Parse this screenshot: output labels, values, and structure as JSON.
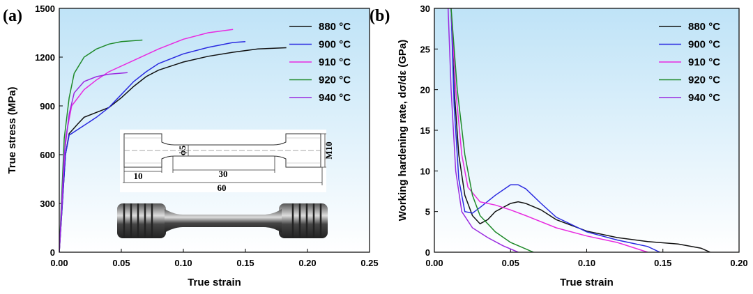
{
  "chart_data": [
    {
      "type": "line",
      "panel_label": "(a)",
      "x_label": "True strain",
      "y_label": "True stress (MPa)",
      "xlim": [
        0,
        0.25
      ],
      "ylim": [
        0,
        1500
      ],
      "xticks": [
        {
          "value": 0,
          "label": "0.00"
        },
        {
          "value": 0.05,
          "label": "0.05"
        },
        {
          "value": 0.1,
          "label": "0.10"
        },
        {
          "value": 0.15,
          "label": "0.15"
        },
        {
          "value": 0.2,
          "label": "0.20"
        },
        {
          "value": 0.25,
          "label": "0.25"
        }
      ],
      "yticks": [
        0,
        300,
        600,
        900,
        1200,
        1500
      ],
      "legend": "upper right",
      "inset_labels": [
        "10",
        "30",
        "60",
        "ϕ5",
        "M10"
      ],
      "series": [
        {
          "name": "880 °C",
          "color": "#111111",
          "x": [
            0,
            0.005,
            0.008,
            0.015,
            0.02,
            0.03,
            0.04,
            0.05,
            0.06,
            0.07,
            0.08,
            0.1,
            0.12,
            0.14,
            0.16,
            0.183
          ],
          "values": [
            0,
            600,
            730,
            790,
            830,
            860,
            890,
            950,
            1020,
            1080,
            1120,
            1170,
            1205,
            1230,
            1250,
            1258
          ]
        },
        {
          "name": "900 °C",
          "color": "#2a2ae0",
          "x": [
            0,
            0.005,
            0.008,
            0.02,
            0.03,
            0.04,
            0.05,
            0.06,
            0.07,
            0.08,
            0.1,
            0.12,
            0.14,
            0.15
          ],
          "values": [
            0,
            600,
            720,
            780,
            830,
            890,
            970,
            1050,
            1110,
            1160,
            1220,
            1260,
            1290,
            1295
          ]
        },
        {
          "name": "910 °C",
          "color": "#e82ae0",
          "x": [
            0,
            0.005,
            0.01,
            0.02,
            0.03,
            0.04,
            0.06,
            0.08,
            0.1,
            0.12,
            0.14
          ],
          "values": [
            0,
            700,
            900,
            1000,
            1060,
            1110,
            1180,
            1250,
            1310,
            1350,
            1370
          ]
        },
        {
          "name": "920 °C",
          "color": "#1f8a2a",
          "x": [
            0,
            0.004,
            0.008,
            0.012,
            0.02,
            0.03,
            0.04,
            0.05,
            0.067
          ],
          "values": [
            0,
            700,
            950,
            1100,
            1200,
            1250,
            1280,
            1295,
            1305
          ]
        },
        {
          "name": "940 °C",
          "color": "#9a2ae0",
          "x": [
            0,
            0.004,
            0.008,
            0.012,
            0.02,
            0.03,
            0.04,
            0.055
          ],
          "values": [
            0,
            600,
            850,
            980,
            1050,
            1080,
            1095,
            1105
          ]
        }
      ]
    },
    {
      "type": "line",
      "panel_label": "(b)",
      "x_label": "True strain",
      "y_label": "Working hardening rate, dσ/dε (GPa)",
      "xlim": [
        0,
        0.2
      ],
      "ylim": [
        0,
        30
      ],
      "xticks": [
        {
          "value": 0,
          "label": "0.00"
        },
        {
          "value": 0.05,
          "label": "0.05"
        },
        {
          "value": 0.1,
          "label": "0.10"
        },
        {
          "value": 0.15,
          "label": "0.15"
        },
        {
          "value": 0.2,
          "label": "0.20"
        }
      ],
      "yticks": [
        0,
        5,
        10,
        15,
        20,
        25,
        30
      ],
      "legend": "upper right",
      "series": [
        {
          "name": "880 °C",
          "color": "#111111",
          "x": [
            0.011,
            0.013,
            0.016,
            0.02,
            0.025,
            0.03,
            0.035,
            0.04,
            0.05,
            0.055,
            0.06,
            0.07,
            0.08,
            0.1,
            0.12,
            0.14,
            0.16,
            0.175,
            0.181
          ],
          "values": [
            30,
            20,
            12,
            7,
            4.5,
            3.5,
            4,
            5,
            6,
            6.2,
            6,
            5.2,
            4,
            2.6,
            1.8,
            1.3,
            1,
            0.5,
            0
          ]
        },
        {
          "name": "900 °C",
          "color": "#2a2ae0",
          "x": [
            0.011,
            0.013,
            0.016,
            0.02,
            0.025,
            0.03,
            0.04,
            0.05,
            0.055,
            0.06,
            0.07,
            0.08,
            0.1,
            0.12,
            0.14,
            0.148
          ],
          "values": [
            30,
            18,
            9,
            5,
            4.8,
            5.5,
            7,
            8.3,
            8.3,
            7.8,
            6,
            4.3,
            2.5,
            1.5,
            0.7,
            0
          ]
        },
        {
          "name": "910 °C",
          "color": "#e82ae0",
          "x": [
            0.011,
            0.014,
            0.018,
            0.022,
            0.03,
            0.04,
            0.05,
            0.06,
            0.08,
            0.1,
            0.12,
            0.135,
            0.14
          ],
          "values": [
            30,
            20,
            12,
            8,
            6.2,
            5.8,
            5.2,
            4.5,
            3,
            2,
            1.2,
            0.3,
            0
          ]
        },
        {
          "name": "920 °C",
          "color": "#1f8a2a",
          "x": [
            0.011,
            0.015,
            0.02,
            0.025,
            0.03,
            0.04,
            0.05,
            0.06,
            0.065
          ],
          "values": [
            30,
            20,
            12,
            7,
            4.5,
            2.5,
            1.2,
            0.4,
            0
          ]
        },
        {
          "name": "940 °C",
          "color": "#9a2ae0",
          "x": [
            0.009,
            0.011,
            0.014,
            0.018,
            0.025,
            0.035,
            0.045,
            0.055
          ],
          "values": [
            30,
            20,
            10,
            5,
            3,
            1.8,
            0.8,
            0
          ]
        }
      ]
    }
  ]
}
